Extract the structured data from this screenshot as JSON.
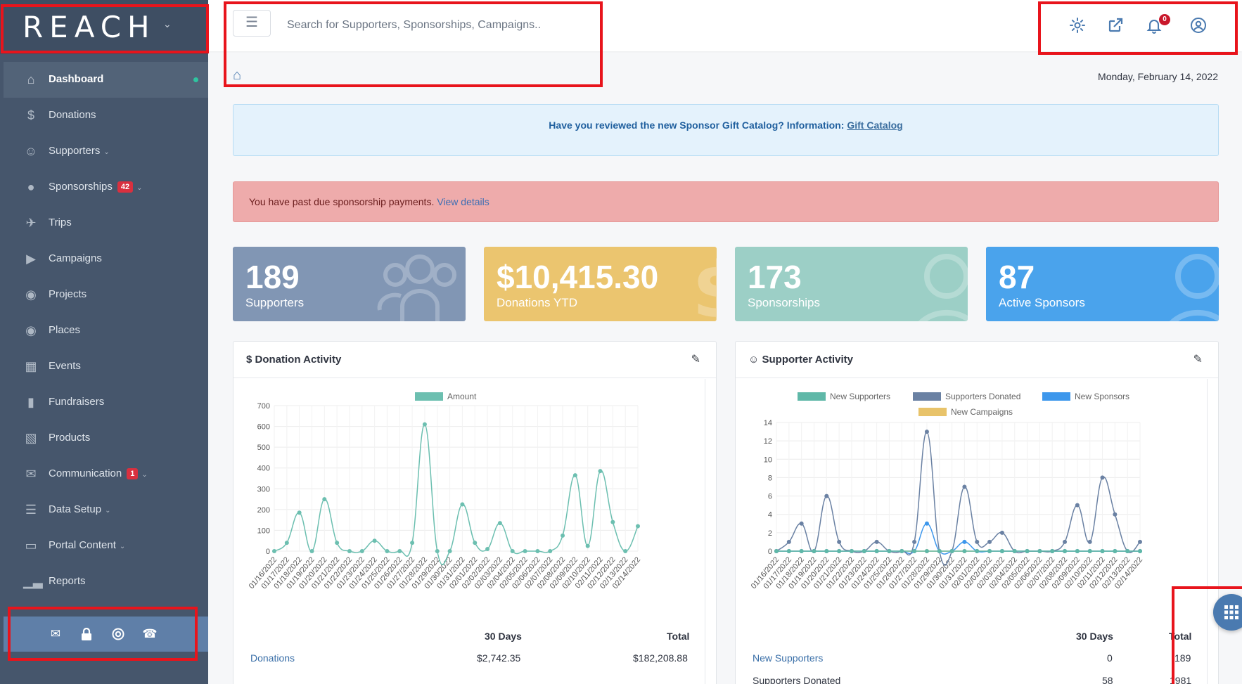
{
  "brand": {
    "logo_text": "REACH"
  },
  "sidebar": {
    "items": [
      {
        "label": "Dashboard",
        "icon": "home-icon",
        "active": true
      },
      {
        "label": "Donations",
        "icon": "dollar-icon"
      },
      {
        "label": "Supporters",
        "icon": "users-icon",
        "has_submenu": true
      },
      {
        "label": "Sponsorships",
        "icon": "user-icon",
        "badge": "42",
        "has_submenu": true
      },
      {
        "label": "Trips",
        "icon": "plane-icon"
      },
      {
        "label": "Campaigns",
        "icon": "megaphone-icon"
      },
      {
        "label": "Projects",
        "icon": "globe-icon"
      },
      {
        "label": "Places",
        "icon": "map-pin-icon"
      },
      {
        "label": "Events",
        "icon": "calendar-icon"
      },
      {
        "label": "Fundraisers",
        "icon": "thermometer-icon"
      },
      {
        "label": "Products",
        "icon": "shopping-basket-icon"
      },
      {
        "label": "Communication",
        "icon": "envelope-icon",
        "badge": "1",
        "has_submenu": true
      },
      {
        "label": "Data Setup",
        "icon": "database-icon",
        "has_submenu": true
      },
      {
        "label": "Portal Content",
        "icon": "monitor-icon",
        "has_submenu": true
      },
      {
        "label": "Reports",
        "icon": "bar-chart-icon"
      }
    ],
    "footer_icons": [
      "envelope-icon",
      "lock-icon",
      "life-ring-icon",
      "phone-icon"
    ]
  },
  "topbar": {
    "search_placeholder": "Search for Supporters, Sponsorships, Campaigns..",
    "notification_count": "0",
    "icons": [
      "gear-icon",
      "external-link-icon",
      "bell-icon",
      "user-circle-icon"
    ]
  },
  "date": "Monday, February 14, 2022",
  "info_alert": {
    "text": "Have you reviewed the new Sponsor Gift Catalog?  Information:",
    "link": "Gift Catalog"
  },
  "danger_alert": {
    "text": "You have past due sponsorship payments.",
    "link": "View details"
  },
  "stats": [
    {
      "value": "189",
      "label": "Supporters",
      "color": "#8196b4"
    },
    {
      "value": "$10,415.30",
      "label": "Donations YTD",
      "color": "#ebc56f"
    },
    {
      "value": "173",
      "label": "Sponsorships",
      "color": "#9ccfc6"
    },
    {
      "value": "87",
      "label": "Active Sponsors",
      "color": "#4aa3ec"
    }
  ],
  "donation_panel": {
    "title": "Donation Activity",
    "summary": {
      "col1": "30 Days",
      "col2": "Total",
      "rows": [
        {
          "label": "Donations",
          "days30": "$2,742.35",
          "total": "$182,208.88"
        }
      ]
    }
  },
  "supporter_panel": {
    "title": "Supporter Activity",
    "summary": {
      "col1": "30 Days",
      "col2": "Total",
      "rows": [
        {
          "label": "New Supporters",
          "days30": "0",
          "total": "189"
        },
        {
          "label": "Supporters Donated",
          "days30": "58",
          "total": "1981"
        }
      ]
    }
  },
  "chart_data": [
    {
      "type": "line",
      "categories": [
        "01/16/2022",
        "01/17/2022",
        "01/18/2022",
        "01/19/2022",
        "01/20/2022",
        "01/21/2022",
        "01/22/2022",
        "01/23/2022",
        "01/24/2022",
        "01/25/2022",
        "01/26/2022",
        "01/27/2022",
        "01/28/2022",
        "01/29/2022",
        "01/30/2022",
        "01/31/2022",
        "02/01/2022",
        "02/02/2022",
        "02/03/2022",
        "02/04/2022",
        "02/05/2022",
        "02/06/2022",
        "02/07/2022",
        "02/08/2022",
        "02/09/2022",
        "02/10/2022",
        "02/11/2022",
        "02/12/2022",
        "02/13/2022",
        "02/14/2022"
      ],
      "series": [
        {
          "name": "Amount",
          "color": "#6cbfb0",
          "values": [
            0,
            40,
            185,
            0,
            250,
            40,
            0,
            0,
            50,
            0,
            0,
            40,
            610,
            0,
            0,
            225,
            40,
            10,
            135,
            0,
            0,
            0,
            0,
            75,
            365,
            25,
            385,
            140,
            0,
            120
          ]
        }
      ],
      "ylim": [
        0,
        700
      ],
      "yticks": [
        0,
        100,
        200,
        300,
        400,
        500,
        600,
        700
      ],
      "legend": "top"
    },
    {
      "type": "line",
      "categories": [
        "01/16/2022",
        "01/17/2022",
        "01/18/2022",
        "01/19/2022",
        "01/20/2022",
        "01/21/2022",
        "01/22/2022",
        "01/23/2022",
        "01/24/2022",
        "01/25/2022",
        "01/26/2022",
        "01/27/2022",
        "01/28/2022",
        "01/29/2022",
        "01/30/2022",
        "01/31/2022",
        "02/01/2022",
        "02/02/2022",
        "02/03/2022",
        "02/04/2022",
        "02/05/2022",
        "02/06/2022",
        "02/07/2022",
        "02/08/2022",
        "02/09/2022",
        "02/10/2022",
        "02/11/2022",
        "02/12/2022",
        "02/13/2022",
        "02/14/2022"
      ],
      "series": [
        {
          "name": "New Supporters",
          "color": "#5fb8a8",
          "values": [
            0,
            0,
            0,
            0,
            0,
            0,
            0,
            0,
            0,
            0,
            0,
            0,
            0,
            0,
            0,
            0,
            0,
            0,
            0,
            0,
            0,
            0,
            0,
            0,
            0,
            0,
            0,
            0,
            0,
            0
          ]
        },
        {
          "name": "Supporters Donated",
          "color": "#6a81a3",
          "values": [
            0,
            1,
            3,
            0,
            6,
            1,
            0,
            0,
            1,
            0,
            0,
            1,
            13,
            0,
            0,
            7,
            1,
            1,
            2,
            0,
            0,
            0,
            0,
            1,
            5,
            1,
            8,
            4,
            0,
            1
          ]
        },
        {
          "name": "New Sponsors",
          "color": "#3d97ec",
          "values": [
            0,
            0,
            0,
            0,
            0,
            0,
            0,
            0,
            0,
            0,
            0,
            0,
            3,
            0,
            0,
            1,
            0,
            0,
            0,
            0,
            0,
            0,
            0,
            0,
            0,
            0,
            0,
            0,
            0,
            0
          ]
        },
        {
          "name": "New Campaigns",
          "color": "#e8c36a",
          "values": [
            0,
            0,
            0,
            0,
            0,
            0,
            0,
            0,
            0,
            0,
            0,
            0,
            0,
            0,
            0,
            0,
            0,
            0,
            0,
            0,
            0,
            0,
            0,
            0,
            0,
            0,
            0,
            0,
            0,
            0
          ]
        }
      ],
      "ylim": [
        0,
        14
      ],
      "yticks": [
        0,
        2,
        4,
        6,
        8,
        10,
        12,
        14
      ],
      "legend": "top"
    }
  ]
}
